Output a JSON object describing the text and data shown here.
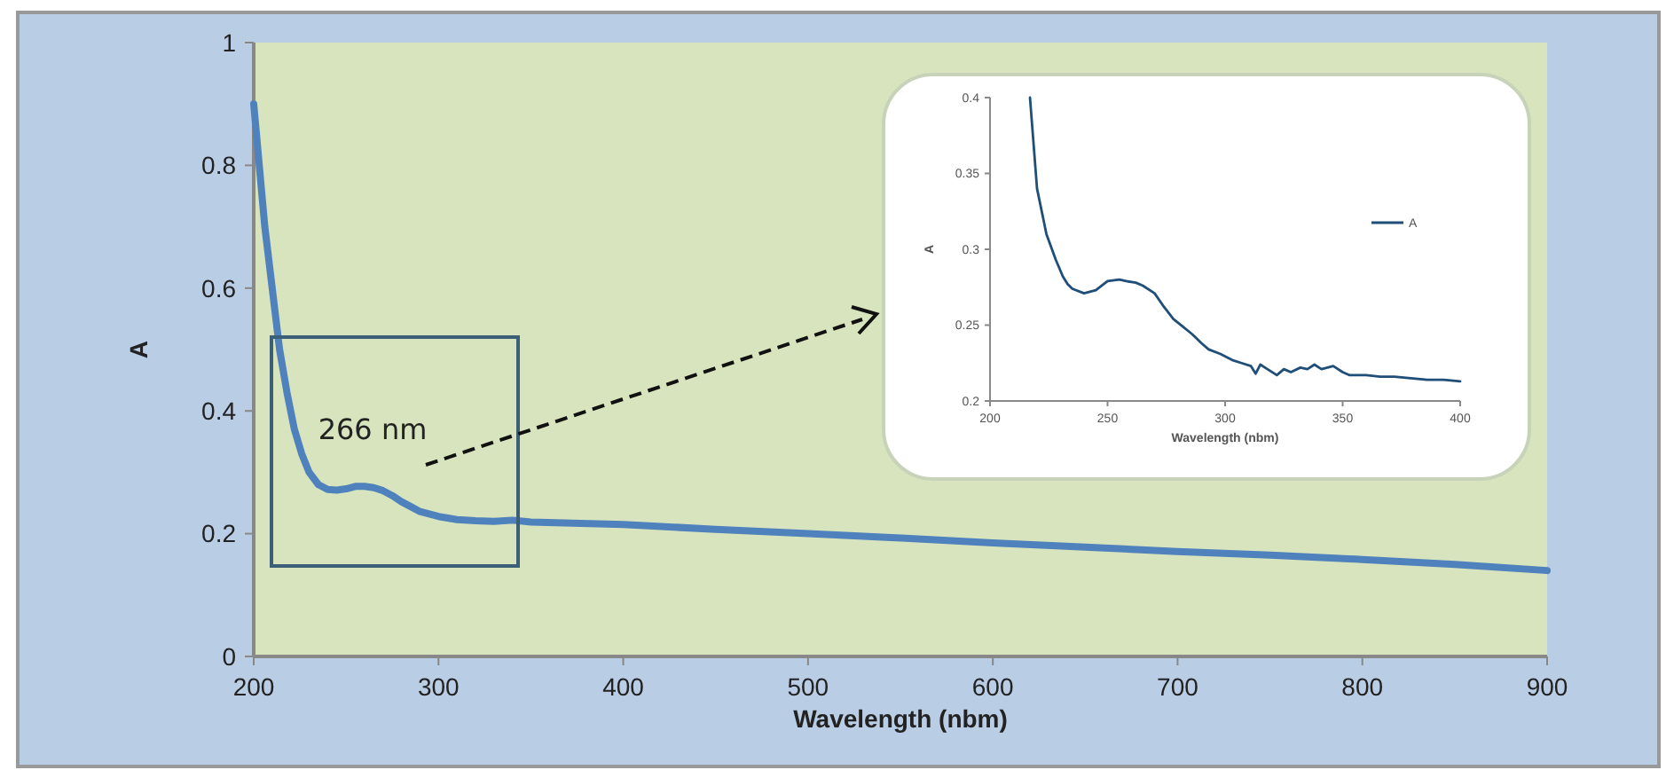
{
  "chart_data": [
    {
      "type": "line",
      "xlabel": "Wavelength (nbm)",
      "ylabel": "A",
      "xlim": [
        200,
        900
      ],
      "ylim": [
        0,
        1
      ],
      "xticks": [
        200,
        300,
        400,
        500,
        600,
        700,
        800,
        900
      ],
      "yticks": [
        0,
        0.2,
        0.4,
        0.6,
        0.8,
        1
      ],
      "legend": false,
      "annotations": [
        "266 nm"
      ],
      "series": [
        {
          "color": "#4f81bd",
          "x": [
            200,
            203,
            206,
            210,
            214,
            218,
            222,
            226,
            230,
            235,
            240,
            245,
            250,
            255,
            260,
            265,
            270,
            275,
            280,
            285,
            290,
            300,
            310,
            320,
            330,
            340,
            350,
            400,
            450,
            500,
            550,
            600,
            650,
            700,
            750,
            800,
            850,
            900
          ],
          "values": [
            0.9,
            0.8,
            0.7,
            0.6,
            0.5,
            0.43,
            0.37,
            0.33,
            0.3,
            0.28,
            0.272,
            0.271,
            0.273,
            0.277,
            0.277,
            0.275,
            0.27,
            0.262,
            0.252,
            0.244,
            0.236,
            0.228,
            0.223,
            0.221,
            0.22,
            0.222,
            0.219,
            0.215,
            0.207,
            0.2,
            0.193,
            0.185,
            0.178,
            0.171,
            0.165,
            0.158,
            0.15,
            0.14
          ]
        }
      ]
    },
    {
      "type": "line",
      "xlabel": "Wavelength (nbm)",
      "ylabel": "A",
      "xlim": [
        200,
        400
      ],
      "ylim": [
        0.2,
        0.4
      ],
      "xticks": [
        200,
        250,
        300,
        350,
        400
      ],
      "yticks": [
        0.2,
        0.25,
        0.3,
        0.35,
        0.4
      ],
      "legend": "right",
      "series": [
        {
          "name": "A",
          "color": "#1f4e79",
          "x": [
            217,
            220,
            224,
            228,
            231,
            233,
            235,
            240,
            245,
            250,
            255,
            258,
            262,
            265,
            270,
            274,
            278,
            282,
            286,
            290,
            293,
            298,
            303,
            307,
            311,
            313,
            315,
            318,
            322,
            325,
            328,
            332,
            335,
            338,
            341,
            346,
            350,
            353,
            360,
            366,
            372,
            379,
            386,
            393,
            400
          ],
          "values": [
            0.4,
            0.34,
            0.31,
            0.293,
            0.282,
            0.277,
            0.274,
            0.271,
            0.273,
            0.279,
            0.28,
            0.279,
            0.278,
            0.276,
            0.271,
            0.262,
            0.254,
            0.249,
            0.244,
            0.238,
            0.234,
            0.231,
            0.227,
            0.225,
            0.223,
            0.218,
            0.224,
            0.221,
            0.217,
            0.221,
            0.219,
            0.222,
            0.221,
            0.224,
            0.221,
            0.223,
            0.219,
            0.217,
            0.217,
            0.216,
            0.216,
            0.215,
            0.214,
            0.214,
            0.213
          ]
        }
      ]
    }
  ]
}
